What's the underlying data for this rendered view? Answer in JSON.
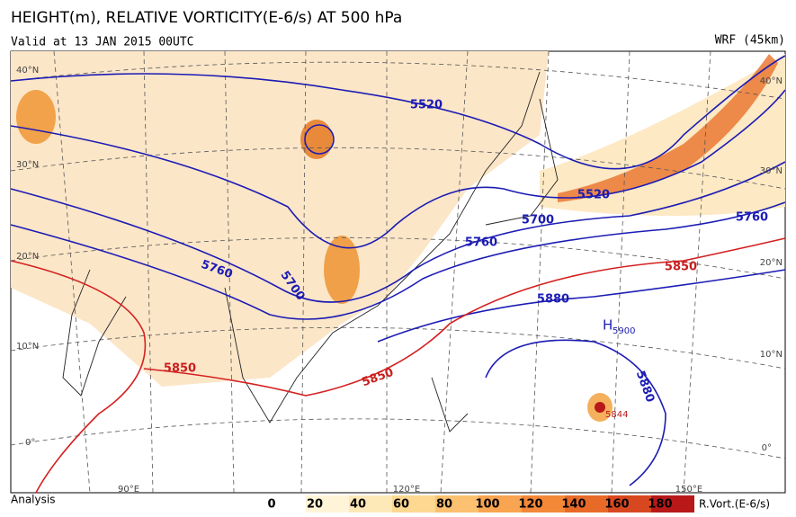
{
  "header": {
    "title": "HEIGHT(m), RELATIVE VORTICITY(E-6/s) AT 500 hPa",
    "valid": "Valid at 13 JAN 2015 00UTC",
    "model": "WRF (45km)"
  },
  "map": {
    "latitude_labels_left": [
      "40°N",
      "30°N",
      "20°N",
      "10°N",
      "0°"
    ],
    "latitude_labels_right": [
      "40°N",
      "30°N",
      "20°N",
      "10°N",
      "0°"
    ],
    "longitude_labels": [
      "90°E",
      "120°E",
      "150°E"
    ],
    "contour_labels": [
      "5520",
      "5520",
      "5700",
      "5760",
      "5760",
      "5850",
      "5880",
      "5760",
      "5700",
      "5850",
      "5850",
      "5880"
    ],
    "high_marker": "H",
    "high_value": "5900",
    "low_value": "5844"
  },
  "footer": {
    "left": "Analysis",
    "colorbar_ticks": [
      0,
      20,
      40,
      60,
      80,
      100,
      120,
      140,
      160,
      180
    ],
    "colorbar_label": "R.Vort.(E-6/s)"
  }
}
